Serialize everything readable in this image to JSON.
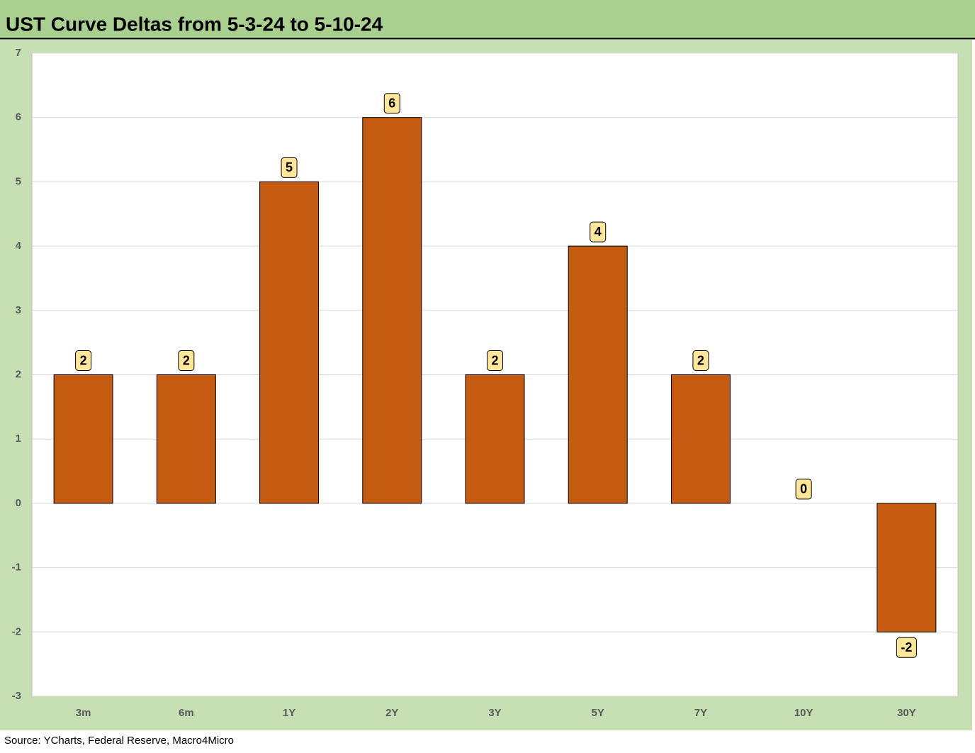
{
  "chart_data": {
    "type": "bar",
    "title": "UST Curve Deltas from 5-3-24 to 5-10-24",
    "source": "Source: YCharts, Federal Reserve, Macro4Micro",
    "categories": [
      "3m",
      "6m",
      "1Y",
      "2Y",
      "3Y",
      "5Y",
      "7Y",
      "10Y",
      "30Y"
    ],
    "values": [
      2,
      2,
      5,
      6,
      2,
      4,
      2,
      0,
      -2
    ],
    "color": "#c55a11",
    "ylim": [
      -3,
      7
    ],
    "yticks": [
      -3,
      -2,
      -1,
      0,
      1,
      2,
      3,
      4,
      5,
      6,
      7
    ],
    "grid": true
  }
}
